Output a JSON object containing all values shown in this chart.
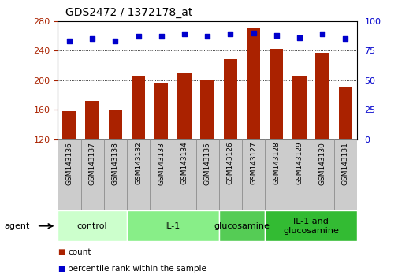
{
  "title": "GDS2472 / 1372178_at",
  "samples": [
    "GSM143136",
    "GSM143137",
    "GSM143138",
    "GSM143132",
    "GSM143133",
    "GSM143134",
    "GSM143135",
    "GSM143126",
    "GSM143127",
    "GSM143128",
    "GSM143129",
    "GSM143130",
    "GSM143131"
  ],
  "counts": [
    158,
    172,
    159,
    205,
    197,
    210,
    200,
    228,
    270,
    242,
    205,
    237,
    191
  ],
  "percentiles": [
    83,
    85,
    83,
    87,
    87,
    89,
    87,
    89,
    90,
    88,
    86,
    89,
    85
  ],
  "groups": [
    {
      "label": "control",
      "start": 0,
      "end": 3,
      "color": "#ccffcc"
    },
    {
      "label": "IL-1",
      "start": 3,
      "end": 7,
      "color": "#88ee88"
    },
    {
      "label": "glucosamine",
      "start": 7,
      "end": 9,
      "color": "#55cc55"
    },
    {
      "label": "IL-1 and\nglucosamine",
      "start": 9,
      "end": 13,
      "color": "#33bb33"
    }
  ],
  "ymin": 120,
  "ymax": 280,
  "yticks": [
    120,
    160,
    200,
    240,
    280
  ],
  "y2min": 0,
  "y2max": 100,
  "y2ticks": [
    0,
    25,
    50,
    75,
    100
  ],
  "bar_color": "#aa2200",
  "dot_color": "#0000cc",
  "bg_color": "#ffffff",
  "grid_color": "#000000",
  "agent_label": "agent",
  "legend_count_label": "count",
  "legend_pct_label": "percentile rank within the sample",
  "label_box_color": "#cccccc",
  "label_box_edge": "#888888"
}
